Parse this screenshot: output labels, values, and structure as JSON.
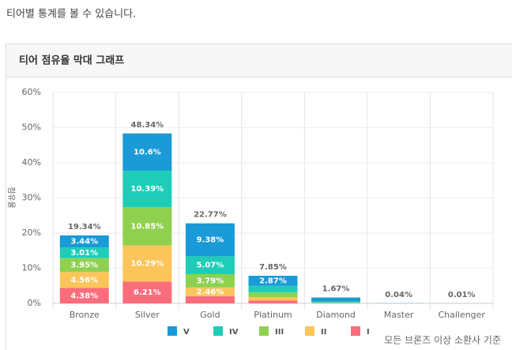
{
  "header": "티어별 통계를 볼 수 있습니다.",
  "chart_data": {
    "type": "stacked-bar",
    "title": "티어 점유율 막대 그래프",
    "ylabel": "점유율",
    "footnote": "모든 브론즈 이상 소환사 기준",
    "categories": [
      "Bronze",
      "Silver",
      "Gold",
      "Platinum",
      "Diamond",
      "Master",
      "Challenger"
    ],
    "series": [
      {
        "name": "V",
        "color": "#1a9ad6",
        "values": [
          3.44,
          10.6,
          9.38,
          2.87,
          1.1,
          0.04,
          0.01
        ],
        "value_labels": [
          "3.44%",
          "10.6%",
          "9.38%",
          "2.87%",
          null,
          null,
          null
        ]
      },
      {
        "name": "IV",
        "color": "#1dcdb8",
        "values": [
          3.01,
          10.39,
          5.07,
          1.88,
          0.3,
          0,
          0
        ],
        "value_labels": [
          "3.01%",
          "10.39%",
          "5.07%",
          null,
          null,
          null,
          null
        ]
      },
      {
        "name": "III",
        "color": "#8fd14f",
        "values": [
          3.95,
          10.85,
          3.79,
          1.3,
          0.15,
          0,
          0
        ],
        "value_labels": [
          "3.95%",
          "10.85%",
          "3.79%",
          null,
          null,
          null,
          null
        ]
      },
      {
        "name": "II",
        "color": "#fcc55a",
        "values": [
          4.56,
          10.29,
          2.46,
          1.0,
          0.08,
          0,
          0
        ],
        "value_labels": [
          "4.56%",
          "10.29%",
          "2.46%",
          null,
          null,
          null,
          null
        ]
      },
      {
        "name": "I",
        "color": "#fc6d7c",
        "values": [
          4.38,
          6.21,
          2.07,
          0.8,
          0.04,
          0,
          0
        ],
        "value_labels": [
          "4.38%",
          "6.21%",
          null,
          null,
          null,
          null,
          null
        ]
      }
    ],
    "total_labels": [
      "19.34%",
      "48.34%",
      "22.77%",
      "7.85%",
      "1.67%",
      "0.04%",
      "0.01%"
    ],
    "ylim": [
      0,
      60
    ],
    "yticks": [
      {
        "value": 0,
        "label": "0%"
      },
      {
        "value": 10,
        "label": "10%"
      },
      {
        "value": 20,
        "label": "20%"
      },
      {
        "value": 30,
        "label": "30%"
      },
      {
        "value": 40,
        "label": "40%"
      },
      {
        "value": 50,
        "label": "50%"
      },
      {
        "value": 60,
        "label": "60%"
      }
    ],
    "grid": true,
    "legend": "bottom"
  }
}
